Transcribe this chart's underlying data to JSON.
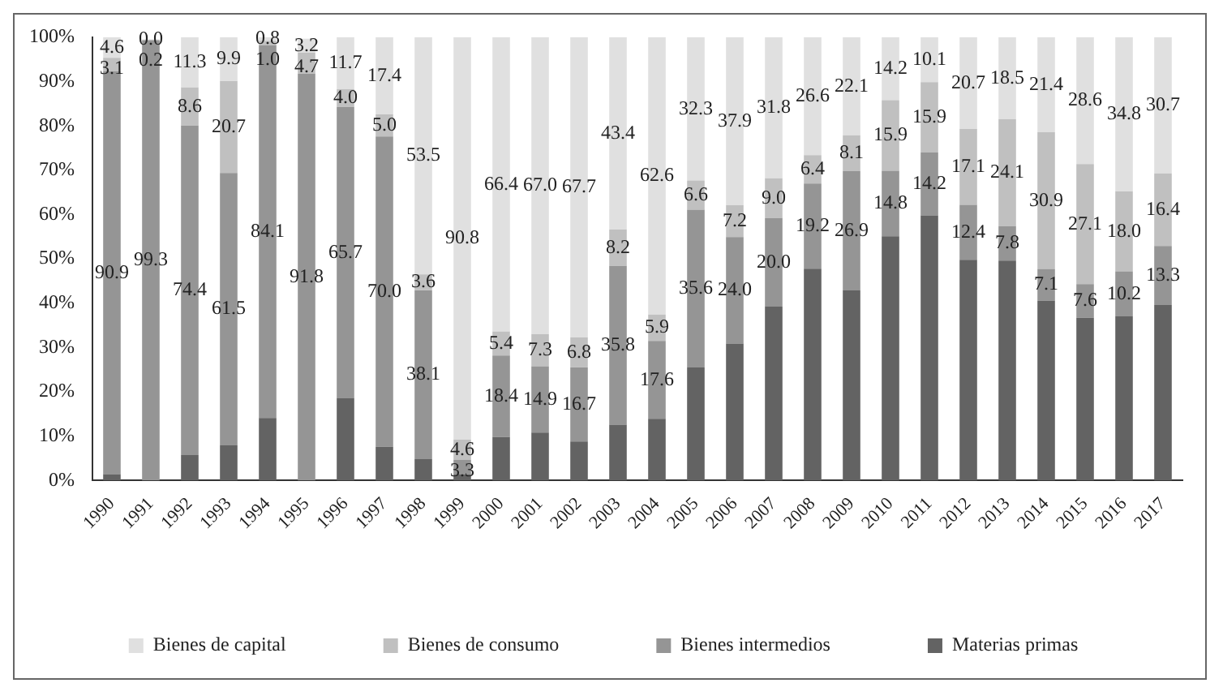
{
  "chart_data": {
    "type": "bar",
    "stacked": true,
    "legend": "bottom",
    "categories": [
      "1990",
      "1991",
      "1992",
      "1993",
      "1994",
      "1995",
      "1996",
      "1997",
      "1998",
      "1999",
      "2000",
      "2001",
      "2002",
      "2003",
      "2004",
      "2005",
      "2006",
      "2007",
      "2008",
      "2009",
      "2010",
      "2011",
      "2012",
      "2013",
      "2014",
      "2015",
      "2016",
      "2017"
    ],
    "ylim": [
      0,
      100
    ],
    "yticks": [
      {
        "value": 0,
        "label": "0%"
      },
      {
        "value": 10,
        "label": "10%"
      },
      {
        "value": 20,
        "label": "20%"
      },
      {
        "value": 30,
        "label": "30%"
      },
      {
        "value": 40,
        "label": "40%"
      },
      {
        "value": 50,
        "label": "50%"
      },
      {
        "value": 60,
        "label": "60%"
      },
      {
        "value": 70,
        "label": "70%"
      },
      {
        "value": 80,
        "label": "80%"
      },
      {
        "value": 90,
        "label": "90%"
      },
      {
        "value": 100,
        "label": "100%"
      }
    ],
    "series": [
      {
        "name": "Materias primas",
        "color": "#636363",
        "values": [
          1.4,
          null,
          5.7,
          7.9,
          14.1,
          null,
          18.6,
          7.6,
          4.8,
          1.3,
          9.8,
          10.8,
          8.8,
          12.6,
          13.9,
          25.5,
          30.9,
          39.2,
          47.8,
          42.9,
          55.1,
          59.8,
          49.8,
          49.6,
          40.6,
          36.7,
          37.0,
          39.6
        ]
      },
      {
        "name": "Bienes intermedios",
        "color": "#959595",
        "values": [
          90.9,
          99.3,
          74.4,
          61.5,
          84.1,
          91.8,
          65.7,
          70.0,
          38.1,
          3.3,
          18.4,
          14.9,
          16.7,
          35.8,
          17.6,
          35.6,
          24.0,
          20.0,
          19.2,
          26.9,
          14.8,
          14.2,
          12.4,
          7.8,
          7.1,
          7.6,
          10.2,
          13.3
        ],
        "value_labels": [
          "90.9",
          "99.3",
          "74.4",
          "61.5",
          "84.1",
          "91.8",
          "65.7",
          "70.0",
          "38.1",
          "3.3",
          "18.4",
          "14.9",
          "16.7",
          "35.8",
          "17.6",
          "35.6",
          "24.0",
          "20.0",
          "19.2",
          "26.9",
          "14.8",
          "14.2",
          "12.4",
          "7.8",
          "7.1",
          "7.6",
          "10.2",
          "13.3"
        ]
      },
      {
        "name": "Bienes de consumo",
        "color": "#c0c0c0",
        "values": [
          3.1,
          0.2,
          8.6,
          20.7,
          1.0,
          4.7,
          4.0,
          5.0,
          3.6,
          4.6,
          5.4,
          7.3,
          6.8,
          8.2,
          5.9,
          6.6,
          7.2,
          9.0,
          6.4,
          8.1,
          15.9,
          15.9,
          17.1,
          24.1,
          30.9,
          27.1,
          18.0,
          16.4
        ],
        "value_labels": [
          "3.1",
          "0.2",
          "8.6",
          "20.7",
          "1.0",
          "4.7",
          "4.0",
          "5.0",
          "3.6",
          "4.6",
          "5.4",
          "7.3",
          "6.8",
          "8.2",
          "5.9",
          "6.6",
          "7.2",
          "9.0",
          "6.4",
          "8.1",
          "15.9",
          "15.9",
          "17.1",
          "24.1",
          "30.9",
          "27.1",
          "18.0",
          "16.4"
        ]
      },
      {
        "name": "Bienes de capital",
        "color": "#e0e0e0",
        "values": [
          4.6,
          0.0,
          11.3,
          9.9,
          0.8,
          3.2,
          11.7,
          17.4,
          53.5,
          90.8,
          66.4,
          67.0,
          67.7,
          43.4,
          62.6,
          32.3,
          37.9,
          31.8,
          26.6,
          22.1,
          14.2,
          10.1,
          20.7,
          18.5,
          21.4,
          28.6,
          34.8,
          30.7
        ],
        "value_labels": [
          "4.6",
          "0.0",
          "11.3",
          "9.9",
          "0.8",
          "3.2",
          "11.7",
          "17.4",
          "53.5",
          "90.8",
          "66.4",
          "67.0",
          "67.7",
          "43.4",
          "62.6",
          "32.3",
          "37.9",
          "31.8",
          "26.6",
          "22.1",
          "14.2",
          "10.1",
          "20.7",
          "18.5",
          "21.4",
          "28.6",
          "34.8",
          "30.7"
        ]
      }
    ]
  }
}
